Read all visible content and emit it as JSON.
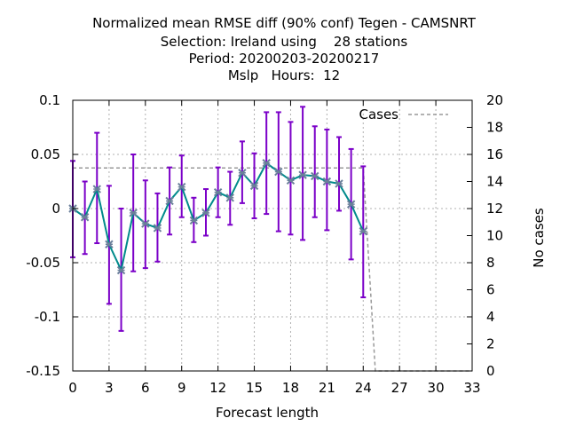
{
  "chart_data": {
    "type": "line",
    "title_lines": [
      "Normalized mean RMSE diff (90% conf) Tegen - CAMSNRT",
      "Selection: Ireland using    28 stations",
      "Period: 20200203-20200217",
      "Mslp   Hours:  12"
    ],
    "xlabel": "Forecast length",
    "ylabel_right": "No cases",
    "xlim": [
      0,
      33
    ],
    "ylim": [
      -0.15,
      0.1
    ],
    "y2lim": [
      0,
      20
    ],
    "x_ticks": [
      "0",
      "3",
      "6",
      "9",
      "12",
      "15",
      "18",
      "21",
      "24",
      "27",
      "30",
      "33"
    ],
    "y_ticks": [
      "0.1",
      "0.05",
      "0",
      "-0.05",
      "-0.1",
      "-0.15"
    ],
    "y2_ticks": [
      "20",
      "18",
      "16",
      "14",
      "12",
      "10",
      "8",
      "6",
      "4",
      "2",
      "0"
    ],
    "grid": true,
    "legend": {
      "position": "top-right",
      "entries": [
        "Cases"
      ]
    },
    "colors": {
      "series": "#008b8b",
      "errorbar": "#7b00c8",
      "cases": "#999999",
      "marker": "#6a7f9a"
    },
    "series": [
      {
        "x": [
          0,
          1,
          2,
          3,
          4,
          5,
          6,
          7,
          8,
          9,
          10,
          11,
          12,
          13,
          14,
          15,
          16,
          17,
          18,
          19,
          20,
          21,
          22,
          23,
          24
        ],
        "values": [
          0.0,
          -0.008,
          0.018,
          -0.033,
          -0.057,
          -0.004,
          -0.014,
          -0.018,
          0.007,
          0.02,
          -0.011,
          -0.004,
          0.015,
          0.01,
          0.033,
          0.021,
          0.042,
          0.034,
          0.026,
          0.031,
          0.03,
          0.025,
          0.023,
          0.004,
          -0.021
        ],
        "lower": [
          -0.045,
          -0.042,
          -0.032,
          -0.088,
          -0.113,
          -0.058,
          -0.055,
          -0.049,
          -0.024,
          -0.008,
          -0.031,
          -0.025,
          -0.008,
          -0.015,
          0.005,
          -0.009,
          -0.005,
          -0.021,
          -0.024,
          -0.029,
          -0.008,
          -0.02,
          -0.002,
          -0.047,
          -0.082
        ],
        "upper": [
          0.044,
          0.025,
          0.07,
          0.021,
          0.0,
          0.05,
          0.026,
          0.014,
          0.038,
          0.049,
          0.01,
          0.018,
          0.038,
          0.034,
          0.062,
          0.051,
          0.089,
          0.089,
          0.08,
          0.094,
          0.076,
          0.073,
          0.066,
          0.055,
          0.039
        ]
      },
      {
        "name": "Cases",
        "x": [
          0,
          24,
          25,
          33
        ],
        "values": [
          15,
          15,
          0,
          0
        ]
      }
    ]
  }
}
